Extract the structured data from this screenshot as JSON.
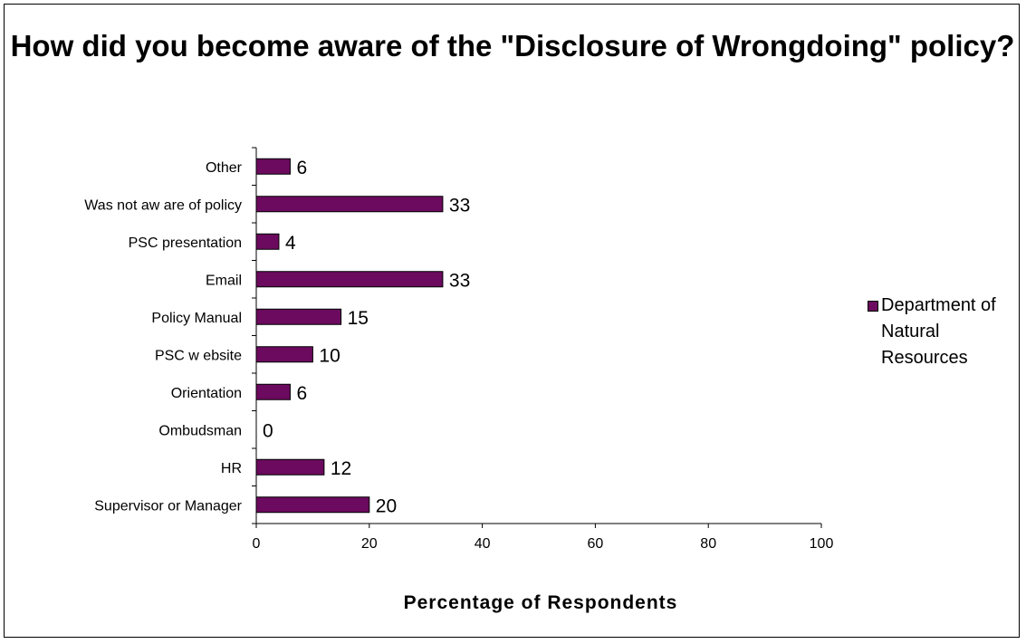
{
  "chart_data": {
    "type": "bar",
    "orientation": "horizontal",
    "title": "How did you become aware of the \"Disclosure of Wrongdoing\" policy?",
    "xlabel": "Percentage of Respondents",
    "ylabel": "",
    "categories": [
      "Supervisor or Manager",
      "HR",
      "Ombudsman",
      "Orientation",
      "PSC w ebsite",
      "Policy Manual",
      "Email",
      "PSC presentation",
      "Was not aw are of policy",
      "Other"
    ],
    "series": [
      {
        "name": "Department of Natural Resources",
        "values": [
          20,
          12,
          0,
          6,
          10,
          15,
          33,
          4,
          33,
          6
        ],
        "color": "#6b0a5e"
      }
    ],
    "xlim": [
      0,
      100
    ],
    "xticks": [
      0,
      20,
      40,
      60,
      80,
      100
    ],
    "data_labels": true,
    "grid": false,
    "legend_position": "right"
  }
}
